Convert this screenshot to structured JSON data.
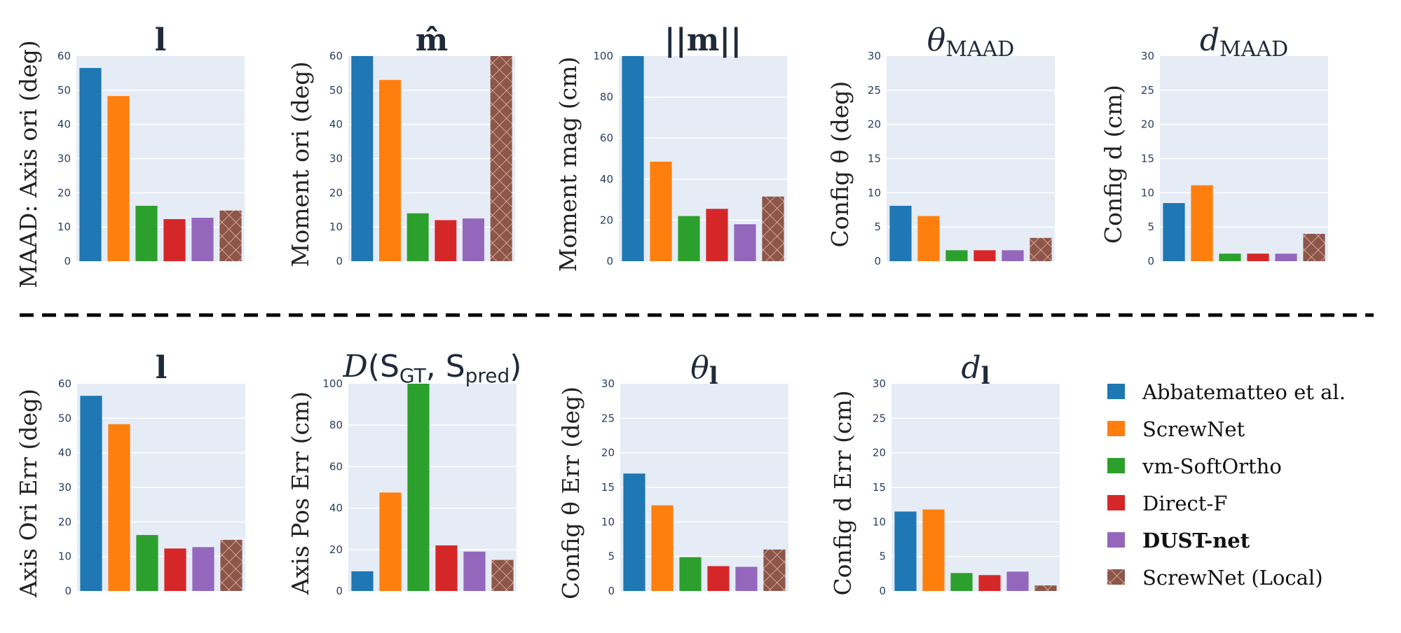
{
  "chart_data": [
    {
      "type": "bar",
      "row": "top",
      "title": "l",
      "title_style": "bold",
      "ylabel": "MAAD: Axis ori (deg)",
      "categories": [
        "Abbatematteo et al.",
        "ScrewNet",
        "vm-SoftOrtho",
        "Direct-F",
        "DUST-net",
        "ScrewNet (Local)"
      ],
      "values": [
        56.5,
        48.3,
        16.2,
        12.3,
        12.7,
        14.8
      ],
      "ylim": [
        0,
        60
      ],
      "yticks": [
        0,
        10,
        20,
        30,
        40,
        50,
        60
      ],
      "grid": true
    },
    {
      "type": "bar",
      "row": "top",
      "title": "m̂",
      "title_style": "bold",
      "ylabel": "Moment ori (deg)",
      "categories": [
        "Abbatematteo et al.",
        "ScrewNet",
        "vm-SoftOrtho",
        "Direct-F",
        "DUST-net",
        "ScrewNet (Local)"
      ],
      "values": [
        60,
        53,
        14,
        12,
        12.5,
        60
      ],
      "ylim": [
        0,
        60
      ],
      "yticks": [
        0,
        10,
        20,
        30,
        40,
        50,
        60
      ],
      "grid": true
    },
    {
      "type": "bar",
      "row": "top",
      "title": "||m||",
      "title_style": "bold",
      "ylabel": "Moment mag (cm)",
      "categories": [
        "Abbatematteo et al.",
        "ScrewNet",
        "vm-SoftOrtho",
        "Direct-F",
        "DUST-net",
        "ScrewNet (Local)"
      ],
      "values": [
        100,
        48.5,
        22,
        25.5,
        18,
        31.5
      ],
      "ylim": [
        0,
        100
      ],
      "yticks": [
        0,
        20,
        40,
        60,
        80,
        100
      ],
      "grid": true
    },
    {
      "type": "bar",
      "row": "top",
      "title": "θ",
      "title_sub": "MAAD",
      "title_style": "italic",
      "ylabel": "Config θ (deg)",
      "categories": [
        "Abbatematteo et al.",
        "ScrewNet",
        "vm-SoftOrtho",
        "Direct-F",
        "DUST-net",
        "ScrewNet (Local)"
      ],
      "values": [
        8.1,
        6.6,
        1.6,
        1.6,
        1.6,
        3.4
      ],
      "ylim": [
        0,
        30
      ],
      "yticks": [
        0,
        5,
        10,
        15,
        20,
        25,
        30
      ],
      "grid": true
    },
    {
      "type": "bar",
      "row": "top",
      "title": "d",
      "title_sub": "MAAD",
      "title_style": "italic",
      "ylabel": "Config d (cm)",
      "categories": [
        "Abbatematteo et al.",
        "ScrewNet",
        "vm-SoftOrtho",
        "Direct-F",
        "DUST-net",
        "ScrewNet (Local)"
      ],
      "values": [
        8.5,
        11.1,
        1.1,
        1.1,
        1.1,
        4.0
      ],
      "ylim": [
        0,
        30
      ],
      "yticks": [
        0,
        5,
        10,
        15,
        20,
        25,
        30
      ],
      "grid": true
    },
    {
      "type": "bar",
      "row": "bottom",
      "title": "l",
      "title_style": "bold",
      "ylabel": "Axis Ori Err (deg)",
      "categories": [
        "Abbatematteo et al.",
        "ScrewNet",
        "vm-SoftOrtho",
        "Direct-F",
        "DUST-net",
        "ScrewNet (Local)"
      ],
      "values": [
        56.5,
        48.3,
        16.2,
        12.3,
        12.7,
        14.8
      ],
      "ylim": [
        0,
        60
      ],
      "yticks": [
        0,
        10,
        20,
        30,
        40,
        50,
        60
      ],
      "grid": true
    },
    {
      "type": "bar",
      "row": "bottom",
      "title": "D(S_GT, S_pred)",
      "title_parts": [
        "D",
        "(S",
        "GT",
        ", S",
        "pred",
        ")"
      ],
      "title_style": "math",
      "ylabel": "Axis Pos Err (cm)",
      "categories": [
        "Abbatematteo et al.",
        "ScrewNet",
        "vm-SoftOrtho",
        "Direct-F",
        "DUST-net",
        "ScrewNet (Local)"
      ],
      "values": [
        9.5,
        47.5,
        100,
        22,
        19,
        15
      ],
      "ylim": [
        0,
        100
      ],
      "yticks": [
        0,
        20,
        40,
        60,
        80,
        100
      ],
      "grid": true
    },
    {
      "type": "bar",
      "row": "bottom",
      "title": "θ",
      "title_sub": "l",
      "title_style": "italic",
      "ylabel": "Config θ Err (deg)",
      "categories": [
        "Abbatematteo et al.",
        "ScrewNet",
        "vm-SoftOrtho",
        "Direct-F",
        "DUST-net",
        "ScrewNet (Local)"
      ],
      "values": [
        17,
        12.4,
        4.9,
        3.6,
        3.5,
        6.0
      ],
      "ylim": [
        0,
        30
      ],
      "yticks": [
        0,
        5,
        10,
        15,
        20,
        25,
        30
      ],
      "grid": true
    },
    {
      "type": "bar",
      "row": "bottom",
      "title": "d",
      "title_sub": "l",
      "title_style": "italic",
      "ylabel": "Config d Err (cm)",
      "categories": [
        "Abbatematteo et al.",
        "ScrewNet",
        "vm-SoftOrtho",
        "Direct-F",
        "DUST-net",
        "ScrewNet (Local)"
      ],
      "values": [
        11.5,
        11.8,
        2.6,
        2.3,
        2.8,
        0.8
      ],
      "ylim": [
        0,
        30
      ],
      "yticks": [
        0,
        5,
        10,
        15,
        20,
        25,
        30
      ],
      "grid": true
    }
  ],
  "legend": {
    "placement": "bottom-right",
    "items": [
      {
        "label": "Abbatematteo et al.",
        "color": "#1f77b4",
        "bold": false,
        "pattern": false
      },
      {
        "label": "ScrewNet",
        "color": "#ff7f0e",
        "bold": false,
        "pattern": false
      },
      {
        "label": "vm-SoftOrtho",
        "color": "#2ca02c",
        "bold": false,
        "pattern": false
      },
      {
        "label": "Direct-F",
        "color": "#d62728",
        "bold": false,
        "pattern": false
      },
      {
        "label": "DUST-net",
        "color": "#9467bd",
        "bold": true,
        "pattern": false
      },
      {
        "label": "ScrewNet (Local)",
        "color": "#8c564b",
        "bold": false,
        "pattern": true
      }
    ]
  },
  "colors": {
    "plot_bg": "#e5ecf6",
    "grid": "#ffffff",
    "hatch": "#e8b8a0",
    "separator": "#000000"
  },
  "separator": {
    "style": "dashed"
  }
}
